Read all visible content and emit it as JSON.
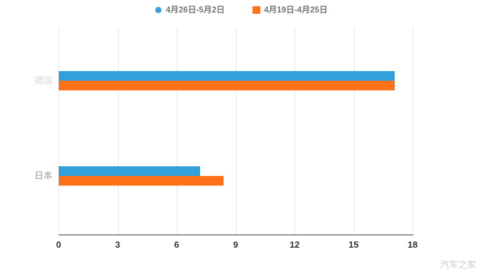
{
  "watermark": "汽车之家",
  "colors": {
    "series1": "#32a0da",
    "series2": "#ff7119",
    "grid": "#e4e4e4",
    "axis_line": "#333333",
    "tick_label": "#333333",
    "legend_text": "#737373",
    "watermark": "#c9c9c9",
    "category_label_colors": [
      "#d9d9d9",
      "#999999"
    ]
  },
  "chart_data": {
    "type": "bar",
    "orientation": "horizontal",
    "title": "",
    "xlabel": "",
    "ylabel": "",
    "categories": [
      "德国",
      "日本"
    ],
    "series": [
      {
        "name": "4月26日-5月2日",
        "color": "#32a0da",
        "marker": "circle",
        "values": [
          17.1,
          7.2
        ]
      },
      {
        "name": "4月19日-4月25日",
        "color": "#ff7119",
        "marker": "square",
        "values": [
          17.1,
          8.4
        ]
      }
    ],
    "xlim": [
      0,
      18
    ],
    "xticks": [
      0,
      3,
      6,
      9,
      12,
      15,
      18
    ],
    "grid": true,
    "legend_position": "top"
  }
}
